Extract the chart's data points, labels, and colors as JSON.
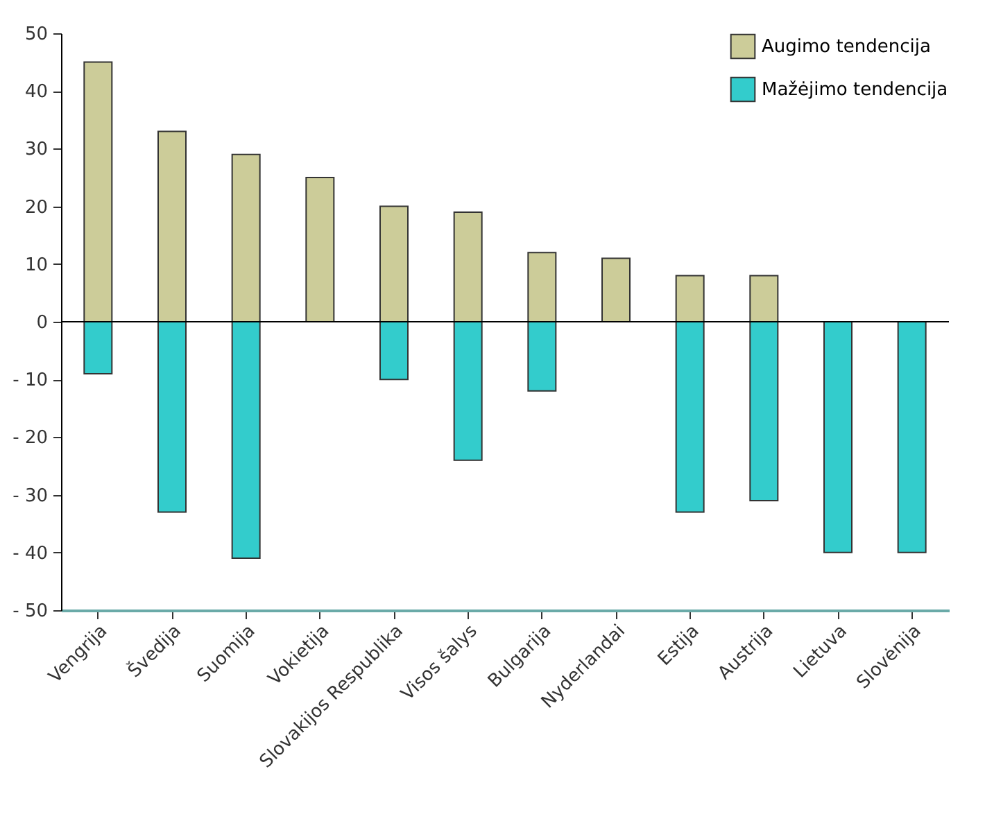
{
  "chart_data": {
    "type": "bar",
    "stacked": true,
    "categories": [
      "Vengrija",
      "Švedija",
      "Suomija",
      "Vokietija",
      "Slovakijos Respublika",
      "Visos šalys",
      "Bulgarija",
      "Nyderlandai",
      "Estija",
      "Austrija",
      "Lietuva",
      "Slovėnija"
    ],
    "series": [
      {
        "name": "Augimo tendencija",
        "color": "#cccc99",
        "values": [
          45,
          33,
          29,
          25,
          20,
          19,
          12,
          11,
          8,
          8,
          0,
          0
        ]
      },
      {
        "name": "Mažėjimo tendencija",
        "color": "#33cccc",
        "values": [
          -9,
          -33,
          -41,
          0,
          -10,
          -24,
          -12,
          0,
          -33,
          -31,
          -40,
          -40
        ]
      }
    ],
    "ylim": [
      -50,
      50
    ],
    "yticks": [
      {
        "value": -50,
        "label": "- 50"
      },
      {
        "value": -40,
        "label": "- 40"
      },
      {
        "value": -30,
        "label": "- 30"
      },
      {
        "value": -20,
        "label": "- 20"
      },
      {
        "value": -10,
        "label": "- 10"
      },
      0,
      10,
      20,
      30,
      40,
      50
    ],
    "legend": "top right"
  }
}
